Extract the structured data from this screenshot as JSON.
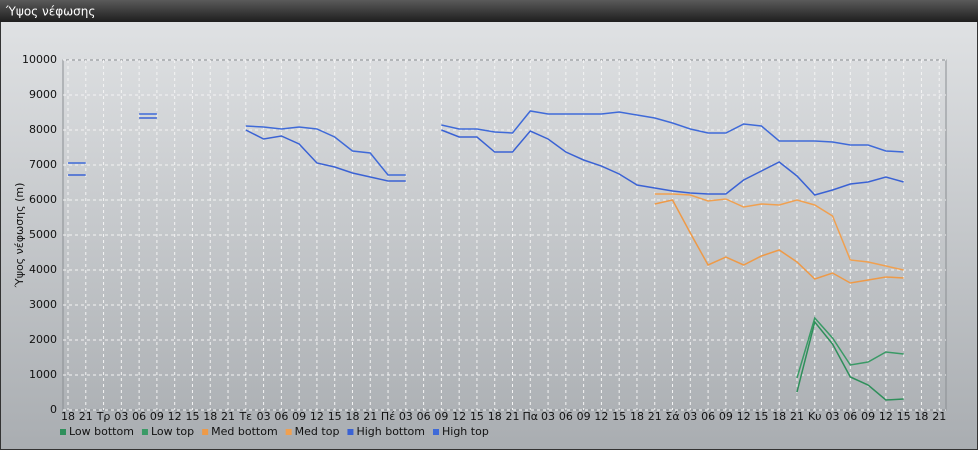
{
  "chart_data": {
    "type": "line",
    "title": "Ύψος νέφωσης",
    "y_label": "Ύψος νέφωσης (m)",
    "categories": [
      "18",
      "21",
      "Τρ",
      "03",
      "06",
      "09",
      "12",
      "15",
      "18",
      "21",
      "Τε",
      "03",
      "06",
      "09",
      "12",
      "15",
      "18",
      "21",
      "Πέ",
      "03",
      "06",
      "09",
      "12",
      "15",
      "18",
      "21",
      "Πα",
      "03",
      "06",
      "09",
      "12",
      "15",
      "18",
      "21",
      "Σά",
      "03",
      "06",
      "09",
      "12",
      "15",
      "18",
      "21",
      "Κυ",
      "03",
      "06",
      "09",
      "12",
      "15",
      "18",
      "21"
    ],
    "ylim": [
      0,
      10000
    ],
    "yticks": [
      0,
      1000,
      2000,
      3000,
      4000,
      5000,
      6000,
      7000,
      8000,
      9000,
      10000
    ],
    "grid": true,
    "series": [
      {
        "name": "Low bottom",
        "color": "#2f8f5b",
        "values": [
          null,
          null,
          null,
          null,
          null,
          null,
          null,
          null,
          null,
          null,
          null,
          null,
          null,
          null,
          null,
          null,
          null,
          null,
          null,
          null,
          null,
          null,
          null,
          null,
          null,
          null,
          null,
          null,
          null,
          null,
          null,
          null,
          null,
          null,
          null,
          null,
          null,
          null,
          null,
          null,
          null,
          514,
          2514,
          1886,
          943,
          714,
          286,
          314,
          null,
          null
        ]
      },
      {
        "name": "Low top",
        "color": "#3a9a66",
        "values": [
          null,
          null,
          null,
          null,
          null,
          null,
          null,
          null,
          null,
          null,
          null,
          null,
          null,
          null,
          null,
          null,
          null,
          null,
          null,
          null,
          null,
          null,
          null,
          null,
          null,
          null,
          null,
          null,
          null,
          null,
          null,
          null,
          null,
          null,
          null,
          null,
          null,
          null,
          null,
          null,
          null,
          914,
          2629,
          2057,
          1286,
          1371,
          1657,
          1600,
          null,
          null
        ]
      },
      {
        "name": "Med bottom",
        "color": "#ee9a48",
        "values": [
          null,
          null,
          null,
          null,
          null,
          null,
          null,
          null,
          null,
          null,
          null,
          null,
          null,
          null,
          null,
          null,
          null,
          null,
          null,
          null,
          null,
          null,
          null,
          null,
          null,
          null,
          null,
          null,
          null,
          null,
          null,
          null,
          null,
          5886,
          6000,
          5057,
          4143,
          4371,
          4143,
          4400,
          4571,
          4229,
          3743,
          3914,
          3629,
          3714,
          3800,
          3771,
          null,
          null
        ]
      },
      {
        "name": "Med top",
        "color": "#f0a050",
        "values": [
          null,
          null,
          null,
          null,
          null,
          null,
          null,
          null,
          null,
          null,
          null,
          null,
          null,
          null,
          null,
          null,
          null,
          null,
          null,
          null,
          null,
          null,
          null,
          null,
          null,
          null,
          null,
          null,
          null,
          null,
          null,
          null,
          null,
          6171,
          6171,
          6143,
          5971,
          6029,
          5800,
          5886,
          5857,
          6000,
          5857,
          5543,
          4286,
          4229,
          4114,
          4000,
          null,
          null
        ]
      },
      {
        "name": "High bottom",
        "color": "#3a62d4",
        "values": [
          6714,
          6714,
          null,
          null,
          8343,
          8343,
          null,
          null,
          null,
          null,
          8000,
          7743,
          7829,
          7600,
          7057,
          6943,
          6771,
          6657,
          6543,
          6543,
          null,
          8000,
          7800,
          7800,
          7371,
          7371,
          7971,
          7743,
          7371,
          7143,
          6971,
          6743,
          6429,
          6343,
          6257,
          6200,
          6171,
          6171,
          6571,
          6829,
          7086,
          6686,
          6143,
          6286,
          6457,
          6514,
          6657,
          6514,
          null,
          null
        ]
      },
      {
        "name": "High top",
        "color": "#3f6ad8",
        "values": [
          7057,
          7057,
          null,
          null,
          8457,
          8457,
          null,
          null,
          null,
          null,
          8114,
          8086,
          8029,
          8086,
          8029,
          7800,
          7400,
          7343,
          6714,
          6714,
          null,
          8143,
          8029,
          8029,
          7943,
          7914,
          8543,
          8457,
          8457,
          8457,
          8457,
          8514,
          8429,
          8343,
          8200,
          8029,
          7914,
          7914,
          8171,
          8114,
          7686,
          7686,
          7686,
          7657,
          7571,
          7571,
          7400,
          7371,
          null,
          null
        ]
      }
    ]
  }
}
